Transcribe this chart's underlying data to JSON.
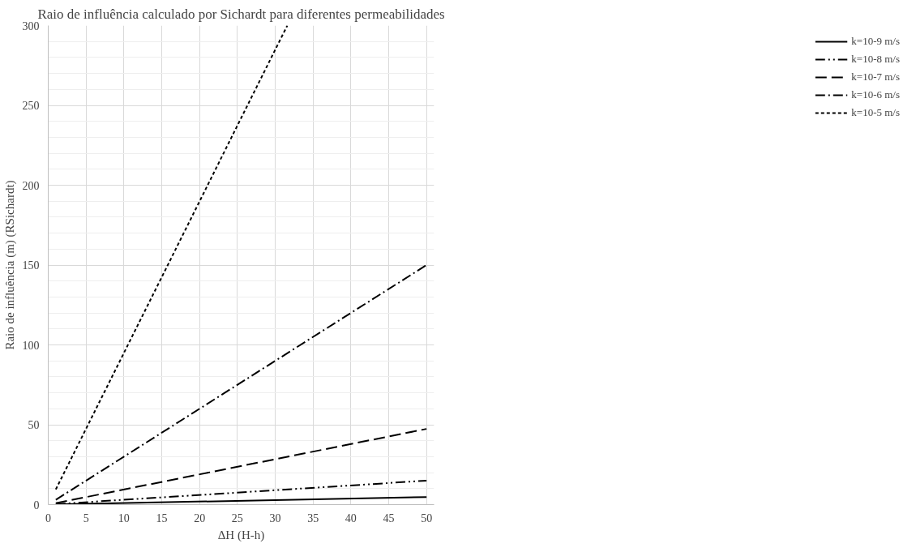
{
  "chart_data": {
    "type": "line",
    "title": "Raio de influência calculado por Sichardt para diferentes permeabilidades",
    "xlabel": "ΔH (H-h)",
    "ylabel": "Raio de influência (m) (RSichardt)",
    "xlim": [
      0,
      51
    ],
    "ylim": [
      0,
      300
    ],
    "xticks": [
      0,
      5,
      10,
      15,
      20,
      25,
      30,
      35,
      40,
      45,
      50
    ],
    "yticks": [
      0,
      50,
      100,
      150,
      200,
      250,
      300
    ],
    "grid": true,
    "legend": "right",
    "series": [
      {
        "name": "k=10-9 m/s",
        "color": "#000000",
        "line_style": "solid",
        "x": [
          1,
          50
        ],
        "values": [
          0.1,
          4.7
        ]
      },
      {
        "name": "k=10-8 m/s",
        "color": "#000000",
        "line_style": "dashdotdot",
        "x": [
          1,
          50
        ],
        "values": [
          0.3,
          15
        ]
      },
      {
        "name": "k=10-7 m/s",
        "color": "#000000",
        "line_style": "longdash",
        "x": [
          1,
          50
        ],
        "values": [
          0.9,
          47.4
        ]
      },
      {
        "name": "k=10-6 m/s",
        "color": "#000000",
        "line_style": "dashdot",
        "x": [
          1,
          50
        ],
        "values": [
          3,
          150
        ]
      },
      {
        "name": "k=10-5 m/s",
        "color": "#000000",
        "line_style": "dashed",
        "x": [
          1,
          31.6
        ],
        "values": [
          9.5,
          300
        ]
      }
    ]
  }
}
